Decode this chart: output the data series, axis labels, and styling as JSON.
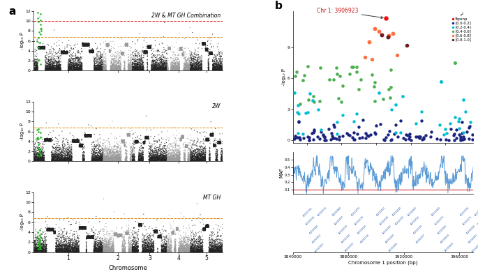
{
  "panel_a": {
    "title_top": "2W & MT GH Combination",
    "title_mid": "2W",
    "title_bot": "MT GH",
    "xlabel": "Chromosome",
    "ylabel": "-log₁₀ P",
    "ylim": [
      0,
      12
    ],
    "yticks": [
      0,
      2,
      4,
      6,
      8,
      10,
      12
    ],
    "sig_line1": 10.0,
    "sig_line2": 6.8,
    "sig_color1": "#dd1111",
    "sig_color2": "#dd8800",
    "chr_colors": [
      "#222222",
      "#999999"
    ],
    "green_color": "#22bb22",
    "n_chrs": 5,
    "chr_sizes": [
      600,
      250,
      300,
      200,
      280
    ]
  },
  "panel_b": {
    "title": "Chr 1: 3906923",
    "title_color": "#cc1111",
    "xlabel": "Chromosome 1 position (bp)",
    "ylabel_top": "-log₁₀ P",
    "ylabel_bot": "MAF",
    "maf_yticks": [
      0.1,
      0.2,
      0.3,
      0.4,
      0.5
    ],
    "xlim": [
      3840000,
      3970000
    ],
    "xticks": [
      3840000,
      3880000,
      3920000,
      3960000
    ],
    "xtick_labels": [
      "3840000",
      "3880000",
      "3920000",
      "3960000"
    ],
    "legend_title": "r²",
    "legend_labels": [
      "Topsnp",
      "[0.0-0.2]",
      "[0.2-0.4]",
      "[0.4-0.6]",
      "[0.6-0.8]",
      "[0.8-1.0]"
    ],
    "legend_colors": [
      "#ee1111",
      "#1a237e",
      "#00bcd4",
      "#4caf50",
      "#ff7043",
      "#6d1b1b"
    ],
    "scatter_ylim": [
      -0.3,
      12.5
    ],
    "scatter_yticks": [
      0,
      3,
      6,
      9
    ],
    "peak_x": 3906923,
    "peak_y": 11.8,
    "maf_red_line": 0.1,
    "maf_ymin": 0.05,
    "maf_ymax": 0.6
  },
  "background_color": "#ffffff"
}
